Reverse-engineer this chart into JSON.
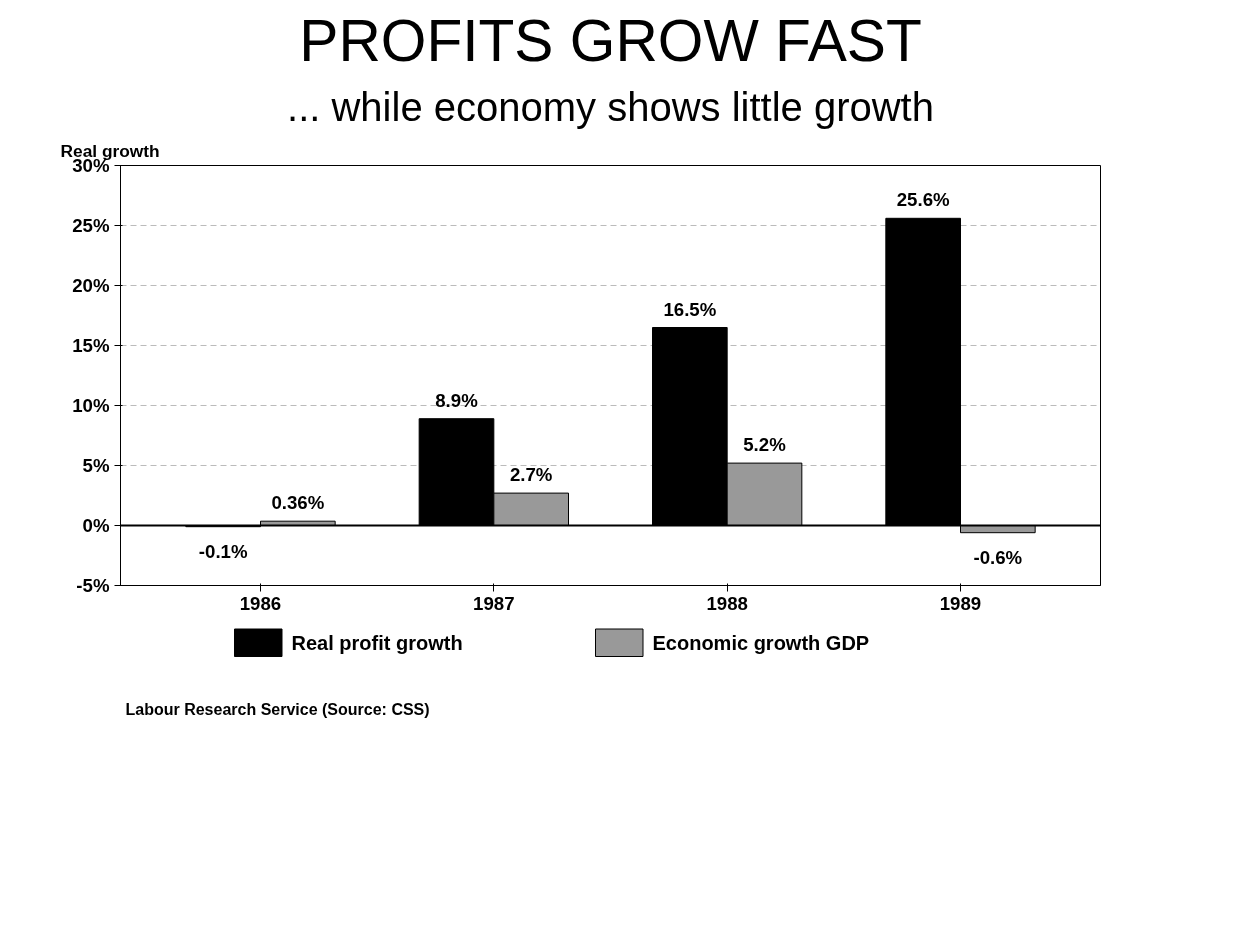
{
  "chart_data": {
    "type": "bar",
    "title": "PROFITS GROW FAST",
    "subtitle": "... while economy shows little growth",
    "ylabel": "Real growth",
    "categories": [
      "1986",
      "1987",
      "1988",
      "1989"
    ],
    "series": [
      {
        "name": "Real profit growth",
        "color": "#000000",
        "values": [
          -0.1,
          8.9,
          16.5,
          25.6
        ],
        "value_labels": [
          "-0.1%",
          "8.9%",
          "16.5%",
          "25.6%"
        ]
      },
      {
        "name": "Economic growth GDP",
        "color": "#999999",
        "values": [
          0.36,
          2.7,
          5.2,
          -0.6
        ],
        "value_labels": [
          "0.36%",
          "2.7%",
          "5.2%",
          "-0.6%"
        ]
      }
    ],
    "ylim": [
      -5,
      30
    ],
    "yticks": [
      {
        "value": -5,
        "label": "-5%"
      },
      {
        "value": 0,
        "label": "0%"
      },
      {
        "value": 5,
        "label": "5%"
      },
      {
        "value": 10,
        "label": "10%"
      },
      {
        "value": 15,
        "label": "15%"
      },
      {
        "value": 20,
        "label": "20%"
      },
      {
        "value": 25,
        "label": "25%"
      },
      {
        "value": 30,
        "label": "30%"
      }
    ],
    "ref_lines": [
      {
        "axis": "y",
        "value": 0
      }
    ],
    "grid": "y",
    "legend": "bottom",
    "annotations": [
      "Labour Research Service (Source: CSS)"
    ]
  }
}
